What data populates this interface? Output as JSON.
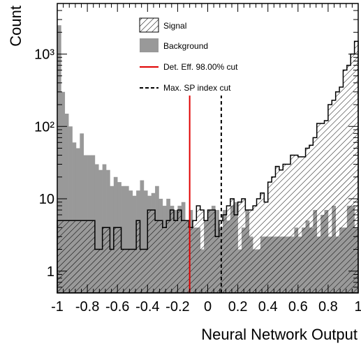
{
  "chart_data": {
    "type": "bar",
    "title": "",
    "xlabel": "Neural Network Output",
    "ylabel": "Count",
    "xlim": [
      -1,
      1
    ],
    "ylim": [
      0.5,
      5000
    ],
    "y_scale": "log",
    "grid": false,
    "legend_position": "top-center",
    "x_ticks": [
      "-1",
      "-0.8",
      "-0.6",
      "-0.4",
      "-0.2",
      "0",
      "0.2",
      "0.4",
      "0.6",
      "0.8",
      "1"
    ],
    "y_ticks": [
      {
        "value": 1,
        "label": "1"
      },
      {
        "value": 10,
        "label": "10"
      },
      {
        "value": 100,
        "label": "10²"
      },
      {
        "value": 1000,
        "label": "10³"
      }
    ],
    "bin_edges_start": -1,
    "bin_width": 0.025,
    "series": [
      {
        "name": "Signal",
        "style": "hatched-step",
        "color": "#000000",
        "values": [
          5,
          5,
          5,
          5,
          5,
          5,
          5,
          5,
          5,
          5,
          2,
          2,
          4,
          4,
          2,
          4,
          4,
          2,
          2,
          2,
          2,
          5,
          2,
          2,
          7,
          7,
          5,
          5,
          4,
          5,
          7,
          5,
          7,
          5,
          5,
          4,
          5,
          8,
          7,
          5,
          7,
          7,
          3,
          5,
          6,
          8,
          10,
          6,
          9,
          10,
          7,
          7,
          8,
          10,
          12,
          9,
          17,
          20,
          28,
          25,
          30,
          30,
          40,
          40,
          38,
          38,
          50,
          55,
          70,
          110,
          110,
          120,
          200,
          230,
          300,
          350,
          600,
          700,
          1000,
          1500
        ]
      },
      {
        "name": "Background",
        "style": "filled",
        "color": "#999999",
        "values": [
          2500,
          300,
          150,
          100,
          60,
          50,
          80,
          40,
          40,
          40,
          30,
          25,
          30,
          25,
          15,
          20,
          17,
          15,
          15,
          13,
          11,
          13,
          18,
          13,
          11,
          12,
          15,
          10,
          8,
          10,
          8,
          7,
          8,
          9,
          5,
          7,
          4,
          4,
          2,
          5,
          7,
          8,
          7,
          4,
          7,
          5,
          8,
          9,
          2,
          4,
          7,
          3,
          2,
          2,
          3,
          3,
          3,
          3,
          3,
          3,
          3,
          3,
          3,
          4,
          3,
          4,
          5,
          4,
          7,
          3,
          6,
          7,
          3,
          8,
          3,
          4,
          4,
          8,
          8,
          4
        ]
      }
    ],
    "cuts": [
      {
        "name": "Det. Eff. 98.00% cut",
        "x": -0.12,
        "color": "#e00000",
        "style": "solid"
      },
      {
        "name": "Max. SP index cut",
        "x": 0.09,
        "color": "#000000",
        "style": "dashed"
      }
    ]
  }
}
